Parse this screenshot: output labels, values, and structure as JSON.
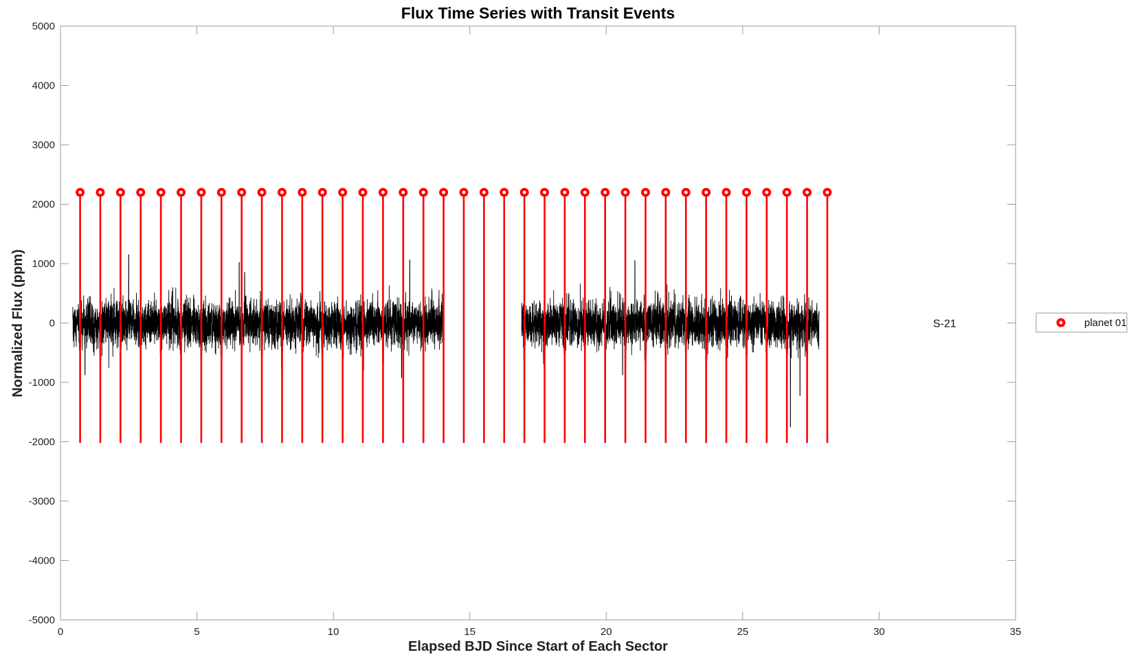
{
  "chart_data": {
    "type": "line",
    "title": "Flux Time Series with Transit Events",
    "xlabel": "Elapsed BJD Since Start of Each Sector",
    "ylabel": "Normalized Flux (ppm)",
    "xlim": [
      0,
      35
    ],
    "ylim": [
      -5000,
      5000
    ],
    "xticks": [
      0,
      5,
      10,
      15,
      20,
      25,
      30,
      35
    ],
    "yticks": [
      -5000,
      -4000,
      -3000,
      -2000,
      -1000,
      0,
      1000,
      2000,
      3000,
      4000,
      5000
    ],
    "grid": false,
    "legend": {
      "placement": "outside-right",
      "entries": [
        "planet 01"
      ]
    },
    "annotations": [
      {
        "text": "S-21",
        "x": 32.4,
        "y": 0
      }
    ],
    "colors": {
      "flux": "#000000",
      "transit": "#ff0000",
      "axes": "#9a9a9a"
    },
    "series": [
      {
        "name": "",
        "kind": "flux",
        "segments": [
          {
            "x_start": 0.45,
            "x_end": 14.0
          },
          {
            "x_start": 16.9,
            "x_end": 27.8
          }
        ],
        "baseline": 0,
        "noise_std": 190,
        "transit_depth": 700,
        "spikes": [
          {
            "x": 2.5,
            "y": 1150
          },
          {
            "x": 6.55,
            "y": 1020
          },
          {
            "x": 6.75,
            "y": 850
          },
          {
            "x": 12.5,
            "y": 1000
          },
          {
            "x": 12.8,
            "y": 1060
          },
          {
            "x": 21.05,
            "y": 1050
          },
          {
            "x": 26.75,
            "y": -1750
          },
          {
            "x": 27.1,
            "y": -1220
          },
          {
            "x": 12.5,
            "y": -920
          },
          {
            "x": 20.6,
            "y": -870
          },
          {
            "x": 0.9,
            "y": -870
          }
        ]
      },
      {
        "name": "planet 01",
        "kind": "transit_stems",
        "marker": "circle",
        "y_top": 2200,
        "y_bottom": -2020,
        "x": [
          0.72,
          1.46,
          2.2,
          2.94,
          3.68,
          4.42,
          5.16,
          5.9,
          6.64,
          7.38,
          8.12,
          8.86,
          9.6,
          10.34,
          11.08,
          11.82,
          12.56,
          13.3,
          14.04,
          14.78,
          15.52,
          16.26,
          17.0,
          17.74,
          18.48,
          19.22,
          19.96,
          20.7,
          21.44,
          22.18,
          22.92,
          23.66,
          24.4,
          25.14,
          25.88,
          26.62,
          27.36,
          28.1
        ]
      }
    ]
  }
}
